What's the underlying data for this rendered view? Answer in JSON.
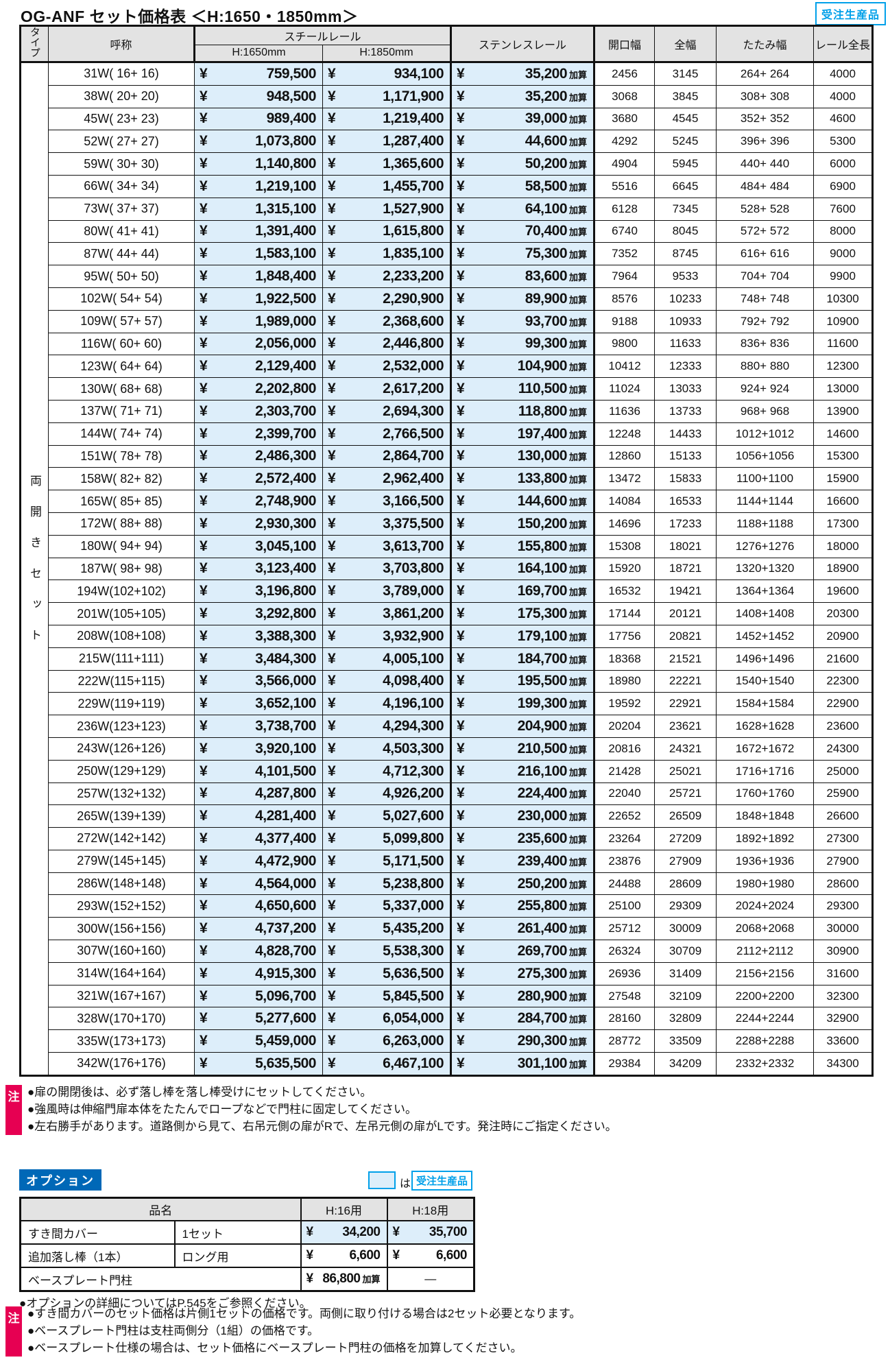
{
  "page": {
    "title": "OG-ANF セット価格表 ＜H:1650・1850mm＞",
    "made_to_order_badge": "受注生産品"
  },
  "colors": {
    "accent_blue": "#0068b7",
    "cyan": "#00a0e9",
    "magenta": "#e60052",
    "cell_blue": "#ddeefa",
    "header_gray": "#e3e3e3"
  },
  "main_table": {
    "currency": "¥",
    "add_label": "加算",
    "type_header": "タイプ",
    "type_label": "両開きセット",
    "headers": {
      "name": "呼称",
      "steel": "スチールレール",
      "steel_h1650": "H:1650mm",
      "steel_h1850": "H:1850mm",
      "stainless": "ステンレスレール",
      "opening": "開口幅",
      "full": "全幅",
      "folding": "たたみ幅",
      "rail": "レール全長"
    },
    "rows": [
      [
        "31W( 16+ 16)",
        "759,500",
        "934,100",
        "35,200",
        "2456",
        "3145",
        "264+ 264",
        "4000"
      ],
      [
        "38W( 20+ 20)",
        "948,500",
        "1,171,900",
        "35,200",
        "3068",
        "3845",
        "308+ 308",
        "4000"
      ],
      [
        "45W( 23+ 23)",
        "989,400",
        "1,219,400",
        "39,000",
        "3680",
        "4545",
        "352+ 352",
        "4600"
      ],
      [
        "52W( 27+ 27)",
        "1,073,800",
        "1,287,400",
        "44,600",
        "4292",
        "5245",
        "396+ 396",
        "5300"
      ],
      [
        "59W( 30+ 30)",
        "1,140,800",
        "1,365,600",
        "50,200",
        "4904",
        "5945",
        "440+ 440",
        "6000"
      ],
      [
        "66W( 34+ 34)",
        "1,219,100",
        "1,455,700",
        "58,500",
        "5516",
        "6645",
        "484+ 484",
        "6900"
      ],
      [
        "73W( 37+ 37)",
        "1,315,100",
        "1,527,900",
        "64,100",
        "6128",
        "7345",
        "528+ 528",
        "7600"
      ],
      [
        "80W( 41+ 41)",
        "1,391,400",
        "1,615,800",
        "70,400",
        "6740",
        "8045",
        "572+ 572",
        "8000"
      ],
      [
        "87W( 44+ 44)",
        "1,583,100",
        "1,835,100",
        "75,300",
        "7352",
        "8745",
        "616+ 616",
        "9000"
      ],
      [
        "95W( 50+ 50)",
        "1,848,400",
        "2,233,200",
        "83,600",
        "7964",
        "9533",
        "704+ 704",
        "9900"
      ],
      [
        "102W( 54+ 54)",
        "1,922,500",
        "2,290,900",
        "89,900",
        "8576",
        "10233",
        "748+ 748",
        "10300"
      ],
      [
        "109W( 57+ 57)",
        "1,989,000",
        "2,368,600",
        "93,700",
        "9188",
        "10933",
        "792+ 792",
        "10900"
      ],
      [
        "116W( 60+ 60)",
        "2,056,000",
        "2,446,800",
        "99,300",
        "9800",
        "11633",
        "836+ 836",
        "11600"
      ],
      [
        "123W( 64+ 64)",
        "2,129,400",
        "2,532,000",
        "104,900",
        "10412",
        "12333",
        "880+ 880",
        "12300"
      ],
      [
        "130W( 68+ 68)",
        "2,202,800",
        "2,617,200",
        "110,500",
        "11024",
        "13033",
        "924+ 924",
        "13000"
      ],
      [
        "137W( 71+ 71)",
        "2,303,700",
        "2,694,300",
        "118,800",
        "11636",
        "13733",
        "968+ 968",
        "13900"
      ],
      [
        "144W( 74+ 74)",
        "2,399,700",
        "2,766,500",
        "197,400",
        "12248",
        "14433",
        "1012+1012",
        "14600"
      ],
      [
        "151W( 78+ 78)",
        "2,486,300",
        "2,864,700",
        "130,000",
        "12860",
        "15133",
        "1056+1056",
        "15300"
      ],
      [
        "158W( 82+ 82)",
        "2,572,400",
        "2,962,400",
        "133,800",
        "13472",
        "15833",
        "1100+1100",
        "15900"
      ],
      [
        "165W( 85+ 85)",
        "2,748,900",
        "3,166,500",
        "144,600",
        "14084",
        "16533",
        "1144+1144",
        "16600"
      ],
      [
        "172W( 88+ 88)",
        "2,930,300",
        "3,375,500",
        "150,200",
        "14696",
        "17233",
        "1188+1188",
        "17300"
      ],
      [
        "180W( 94+ 94)",
        "3,045,100",
        "3,613,700",
        "155,800",
        "15308",
        "18021",
        "1276+1276",
        "18000"
      ],
      [
        "187W( 98+ 98)",
        "3,123,400",
        "3,703,800",
        "164,100",
        "15920",
        "18721",
        "1320+1320",
        "18900"
      ],
      [
        "194W(102+102)",
        "3,196,800",
        "3,789,000",
        "169,700",
        "16532",
        "19421",
        "1364+1364",
        "19600"
      ],
      [
        "201W(105+105)",
        "3,292,800",
        "3,861,200",
        "175,300",
        "17144",
        "20121",
        "1408+1408",
        "20300"
      ],
      [
        "208W(108+108)",
        "3,388,300",
        "3,932,900",
        "179,100",
        "17756",
        "20821",
        "1452+1452",
        "20900"
      ],
      [
        "215W(111+111)",
        "3,484,300",
        "4,005,100",
        "184,700",
        "18368",
        "21521",
        "1496+1496",
        "21600"
      ],
      [
        "222W(115+115)",
        "3,566,000",
        "4,098,400",
        "195,500",
        "18980",
        "22221",
        "1540+1540",
        "22300"
      ],
      [
        "229W(119+119)",
        "3,652,100",
        "4,196,100",
        "199,300",
        "19592",
        "22921",
        "1584+1584",
        "22900"
      ],
      [
        "236W(123+123)",
        "3,738,700",
        "4,294,300",
        "204,900",
        "20204",
        "23621",
        "1628+1628",
        "23600"
      ],
      [
        "243W(126+126)",
        "3,920,100",
        "4,503,300",
        "210,500",
        "20816",
        "24321",
        "1672+1672",
        "24300"
      ],
      [
        "250W(129+129)",
        "4,101,500",
        "4,712,300",
        "216,100",
        "21428",
        "25021",
        "1716+1716",
        "25000"
      ],
      [
        "257W(132+132)",
        "4,287,800",
        "4,926,200",
        "224,400",
        "22040",
        "25721",
        "1760+1760",
        "25900"
      ],
      [
        "265W(139+139)",
        "4,281,400",
        "5,027,600",
        "230,000",
        "22652",
        "26509",
        "1848+1848",
        "26600"
      ],
      [
        "272W(142+142)",
        "4,377,400",
        "5,099,800",
        "235,600",
        "23264",
        "27209",
        "1892+1892",
        "27300"
      ],
      [
        "279W(145+145)",
        "4,472,900",
        "5,171,500",
        "239,400",
        "23876",
        "27909",
        "1936+1936",
        "27900"
      ],
      [
        "286W(148+148)",
        "4,564,000",
        "5,238,800",
        "250,200",
        "24488",
        "28609",
        "1980+1980",
        "28600"
      ],
      [
        "293W(152+152)",
        "4,650,600",
        "5,337,000",
        "255,800",
        "25100",
        "29309",
        "2024+2024",
        "29300"
      ],
      [
        "300W(156+156)",
        "4,737,200",
        "5,435,200",
        "261,400",
        "25712",
        "30009",
        "2068+2068",
        "30000"
      ],
      [
        "307W(160+160)",
        "4,828,700",
        "5,538,300",
        "269,700",
        "26324",
        "30709",
        "2112+2112",
        "30900"
      ],
      [
        "314W(164+164)",
        "4,915,300",
        "5,636,500",
        "275,300",
        "26936",
        "31409",
        "2156+2156",
        "31600"
      ],
      [
        "321W(167+167)",
        "5,096,700",
        "5,845,500",
        "280,900",
        "27548",
        "32109",
        "2200+2200",
        "32300"
      ],
      [
        "328W(170+170)",
        "5,277,600",
        "6,054,000",
        "284,700",
        "28160",
        "32809",
        "2244+2244",
        "32900"
      ],
      [
        "335W(173+173)",
        "5,459,000",
        "6,263,000",
        "290,300",
        "28772",
        "33509",
        "2288+2288",
        "33600"
      ],
      [
        "342W(176+176)",
        "5,635,500",
        "6,467,100",
        "301,100",
        "29384",
        "34209",
        "2332+2332",
        "34300"
      ]
    ]
  },
  "notes_top": {
    "badge": "注",
    "items": [
      "●扉の開閉後は、必ず落し棒を落し棒受けにセットしてください。",
      "●強風時は伸縮門扉本体をたたんでロープなどで門柱に固定してください。",
      "●左右勝手があります。道路側から見て、右吊元側の扉がRで、左吊元側の扉がLです。発注時にご指定ください。"
    ]
  },
  "options": {
    "badge": "オプション",
    "legend_particle": "は",
    "legend_badge": "受注生産品",
    "headers": {
      "name": "品名",
      "h16": "H:16用",
      "h18": "H:18用"
    },
    "currency": "¥",
    "add_label": "加算",
    "rows": [
      {
        "name": "すき間カバー",
        "spec": "1セット",
        "h16": "34,200",
        "h18": "35,700",
        "highlight": true
      },
      {
        "name": "追加落し棒（1本）",
        "spec": "ロング用",
        "h16": "6,600",
        "h18": "6,600"
      },
      {
        "name": "ベースプレート門柱",
        "h16": "86,800",
        "h16_suffix": "加算",
        "h18": "―"
      }
    ],
    "detail_note": "●オプションの詳細についてはP.545をご参照ください。"
  },
  "notes_bottom": {
    "badge": "注",
    "items": [
      "●すき間カバーのセット価格は片側1セットの価格です。両側に取り付ける場合は2セット必要となります。",
      "●ベースプレート門柱は支柱両側分（1組）の価格です。",
      "●ベースプレート仕様の場合は、セット価格にベースプレート門柱の価格を加算してください。"
    ]
  }
}
